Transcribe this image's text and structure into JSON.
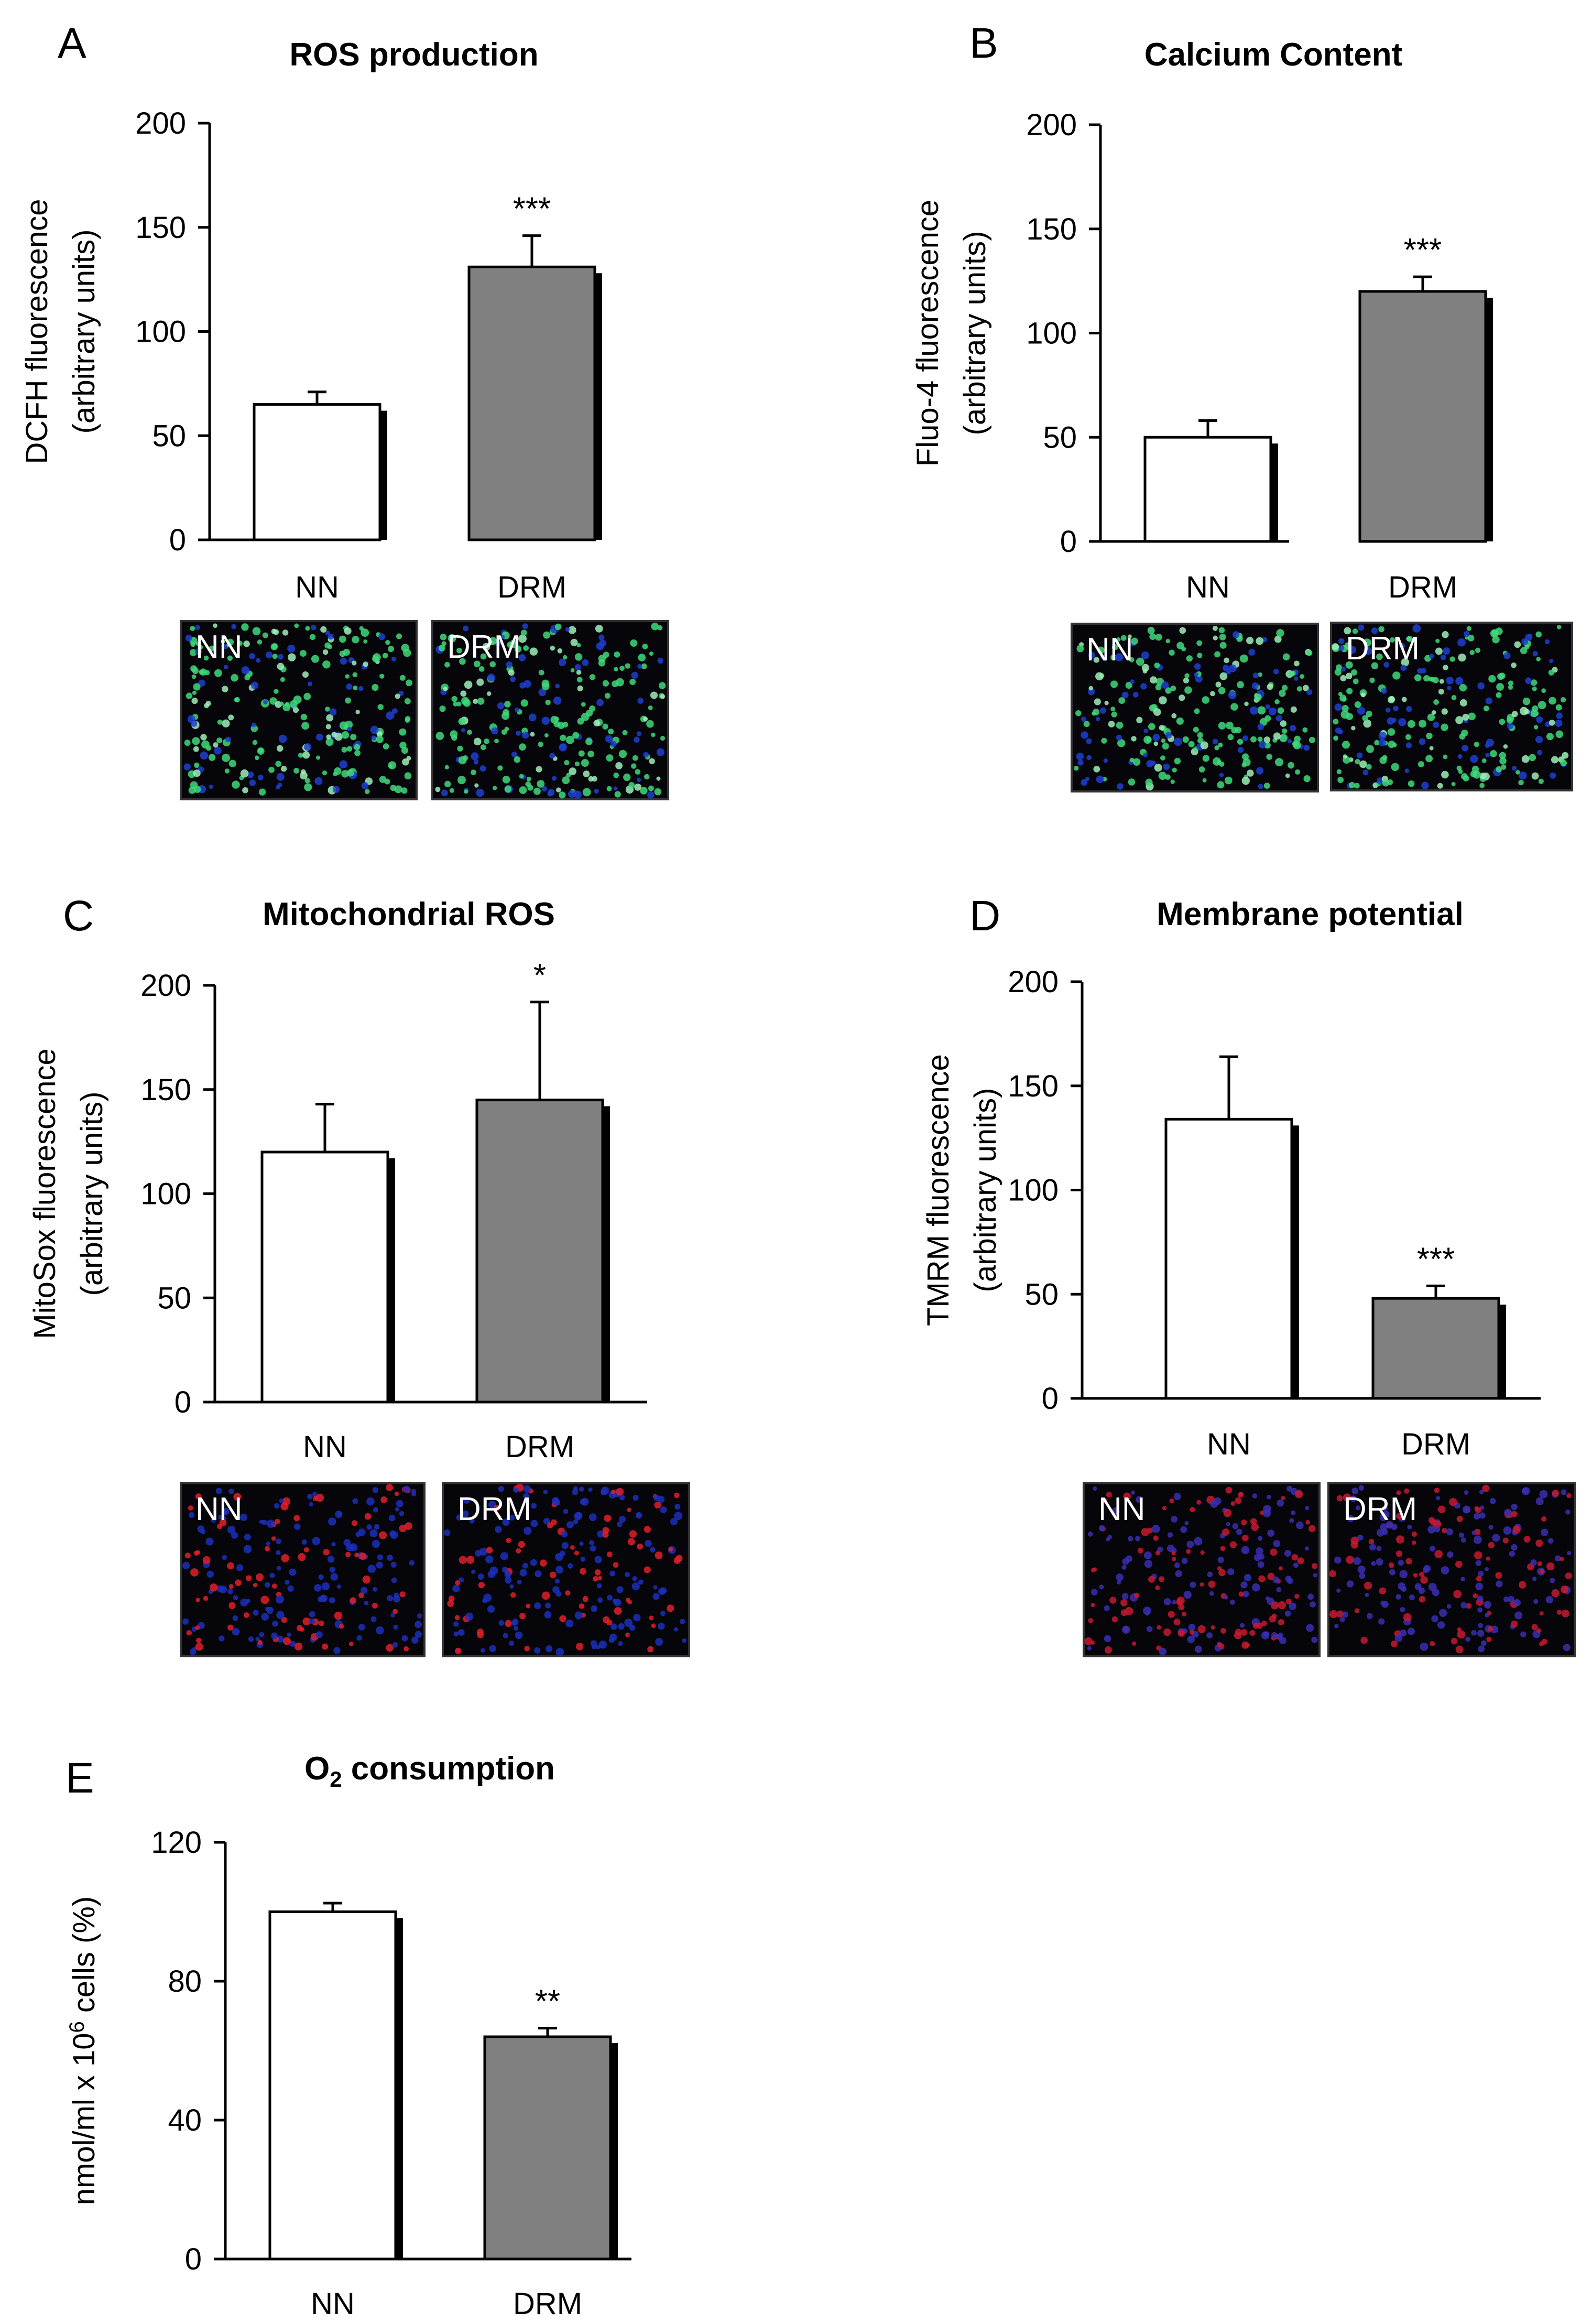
{
  "figure": {
    "panel_letters": [
      "A",
      "B",
      "C",
      "D",
      "E"
    ],
    "micrograph_tags": {
      "control": "NN",
      "treated": "DRM"
    }
  },
  "colors": {
    "control_bar": "#ffffff",
    "treated_bar": "#808080",
    "shadow": "#000000"
  },
  "chart_data": [
    {
      "type": "bar",
      "panel": "A",
      "title": "ROS production",
      "ylabel_line1": "DCFH fluorescence",
      "ylabel_line2": "(arbitrary units)",
      "categories": [
        "NN",
        "DRM"
      ],
      "values": [
        65,
        131
      ],
      "errors": [
        6,
        15
      ],
      "significance": [
        "",
        "***"
      ],
      "ylim": [
        0,
        200
      ],
      "yticks": [
        0,
        50,
        100,
        150,
        200
      ],
      "micrograph": "green",
      "grid": false
    },
    {
      "type": "bar",
      "panel": "B",
      "title": "Calcium Content",
      "ylabel_line1": "Fluo-4 fluorescence",
      "ylabel_line2": "(arbitrary units)",
      "categories": [
        "NN",
        "DRM"
      ],
      "values": [
        50,
        120
      ],
      "errors": [
        8,
        7
      ],
      "significance": [
        "",
        "***"
      ],
      "ylim": [
        0,
        200
      ],
      "yticks": [
        0,
        50,
        100,
        150,
        200
      ],
      "micrograph": "green",
      "grid": false
    },
    {
      "type": "bar",
      "panel": "C",
      "title": "Mitochondrial ROS",
      "ylabel_line1": "MitoSox  fluorescence",
      "ylabel_line2": "(arbitrary units)",
      "categories": [
        "NN",
        "DRM"
      ],
      "values": [
        120,
        145
      ],
      "errors": [
        23,
        47
      ],
      "significance": [
        "",
        "*"
      ],
      "ylim": [
        0,
        200
      ],
      "yticks": [
        0,
        50,
        100,
        150,
        200
      ],
      "micrograph": "red",
      "grid": false
    },
    {
      "type": "bar",
      "panel": "D",
      "title": "Membrane potential",
      "ylabel_line1": "TMRM fluorescence",
      "ylabel_line2": "(arbitrary units)",
      "categories": [
        "NN",
        "DRM"
      ],
      "values": [
        134,
        48
      ],
      "errors": [
        30,
        6
      ],
      "significance": [
        "",
        "***"
      ],
      "ylim": [
        0,
        200
      ],
      "yticks": [
        0,
        50,
        100,
        150,
        200
      ],
      "micrograph": "red-blue",
      "grid": false
    },
    {
      "type": "bar",
      "panel": "E",
      "title": "O",
      "title_sub": "2",
      "title_rest": " consumption",
      "ylabel_line1": "nmol/ml x 10",
      "ylabel_sup": "6",
      "ylabel_rest": " cells (%)",
      "categories": [
        "NN",
        "DRM"
      ],
      "values": [
        100,
        64
      ],
      "errors": [
        2.5,
        2.5
      ],
      "significance": [
        "",
        "**"
      ],
      "ylim": [
        0,
        120
      ],
      "yticks": [
        0,
        40,
        80,
        120
      ],
      "micrograph": "none",
      "grid": false
    }
  ]
}
